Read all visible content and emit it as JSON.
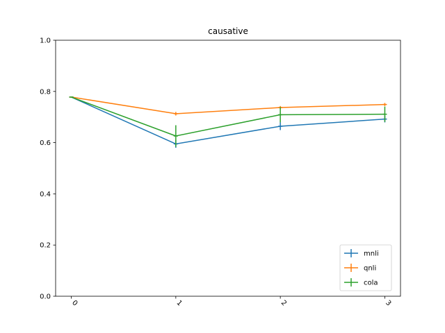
{
  "chart_data": {
    "type": "line",
    "title": "causative",
    "xlabel": "",
    "ylabel": "",
    "x": [
      "0",
      "1",
      "2",
      "3"
    ],
    "xlim": [
      -0.15,
      3.15
    ],
    "ylim": [
      0.0,
      1.0
    ],
    "yticks": [
      "0.0",
      "0.2",
      "0.4",
      "0.6",
      "0.8",
      "1.0"
    ],
    "x_tick_rotation": 45,
    "grid": false,
    "legend_position": "lower right",
    "series": [
      {
        "name": "mnli",
        "color": "#1f77b4",
        "values": [
          0.778,
          0.595,
          0.664,
          0.692
        ],
        "errors": [
          0.0,
          0.015,
          0.015,
          0.013
        ]
      },
      {
        "name": "qnli",
        "color": "#ff7f0e",
        "values": [
          0.778,
          0.713,
          0.737,
          0.749
        ],
        "errors": [
          0.0,
          0.007,
          0.006,
          0.006
        ]
      },
      {
        "name": "cola",
        "color": "#2ca02c",
        "values": [
          0.778,
          0.626,
          0.709,
          0.711
        ],
        "errors": [
          0.0,
          0.042,
          0.03,
          0.03
        ]
      }
    ]
  }
}
